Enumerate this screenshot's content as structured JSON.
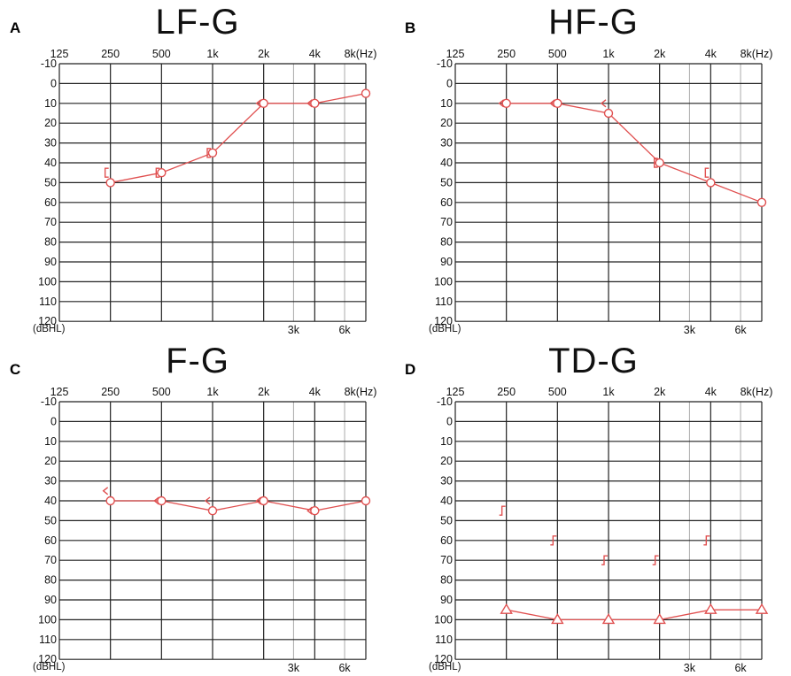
{
  "panels": [
    {
      "letter": "A",
      "title": "LF-G"
    },
    {
      "letter": "B",
      "title": "HF-G"
    },
    {
      "letter": "C",
      "title": "F-G"
    },
    {
      "letter": "D",
      "title": "TD-G"
    }
  ],
  "colors": {
    "marker": "#e05050",
    "grid": "#222222",
    "subgrid": "#aaaaaa"
  },
  "chart_data": [
    {
      "type": "line",
      "title": "LF-G",
      "x_tick_labels": [
        "125",
        "250",
        "500",
        "1k",
        "2k",
        "4k",
        "8k(Hz)"
      ],
      "x_mid_labels": [
        "3k",
        "6k"
      ],
      "y_tick_labels": [
        "-10",
        "0",
        "10",
        "20",
        "30",
        "40",
        "50",
        "60",
        "70",
        "80",
        "90",
        "100",
        "110",
        "120"
      ],
      "y_unit_label": "(dBHL)",
      "ylim": [
        -10,
        120
      ],
      "y_inverted": true,
      "air_conduction": {
        "symbol": "circle",
        "x": [
          250,
          500,
          1000,
          2000,
          4000,
          8000
        ],
        "y": [
          50,
          45,
          35,
          10,
          10,
          5
        ]
      },
      "bone_conduction": [
        {
          "symbol": "bracket",
          "x": 250,
          "y": 45
        },
        {
          "symbol": "bracket",
          "x": 500,
          "y": 45
        },
        {
          "symbol": "bracket",
          "x": 1000,
          "y": 35
        },
        {
          "symbol": "chevron",
          "x": 2000,
          "y": 10
        },
        {
          "symbol": "chevron",
          "x": 4000,
          "y": 10
        }
      ]
    },
    {
      "type": "line",
      "title": "HF-G",
      "x_tick_labels": [
        "125",
        "250",
        "500",
        "1k",
        "2k",
        "4k",
        "8k(Hz)"
      ],
      "x_mid_labels": [
        "3k",
        "6k"
      ],
      "y_tick_labels": [
        "-10",
        "0",
        "10",
        "20",
        "30",
        "40",
        "50",
        "60",
        "70",
        "80",
        "90",
        "100",
        "110",
        "120"
      ],
      "y_unit_label": "(dBHL)",
      "ylim": [
        -10,
        120
      ],
      "y_inverted": true,
      "air_conduction": {
        "symbol": "circle",
        "x": [
          250,
          500,
          1000,
          2000,
          4000,
          8000
        ],
        "y": [
          10,
          10,
          15,
          40,
          50,
          60
        ]
      },
      "bone_conduction": [
        {
          "symbol": "chevron",
          "x": 250,
          "y": 10
        },
        {
          "symbol": "chevron",
          "x": 500,
          "y": 10
        },
        {
          "symbol": "chevron",
          "x": 1000,
          "y": 10
        },
        {
          "symbol": "bracket",
          "x": 2000,
          "y": 40
        },
        {
          "symbol": "bracket",
          "x": 4000,
          "y": 45
        }
      ]
    },
    {
      "type": "line",
      "title": "F-G",
      "x_tick_labels": [
        "125",
        "250",
        "500",
        "1k",
        "2k",
        "4k",
        "8k(Hz)"
      ],
      "x_mid_labels": [
        "3k",
        "6k"
      ],
      "y_tick_labels": [
        "-10",
        "0",
        "10",
        "20",
        "30",
        "40",
        "50",
        "60",
        "70",
        "80",
        "90",
        "100",
        "110",
        "120"
      ],
      "y_unit_label": "(dBHL)",
      "ylim": [
        -10,
        120
      ],
      "y_inverted": true,
      "air_conduction": {
        "symbol": "circle",
        "x": [
          250,
          500,
          1000,
          2000,
          4000,
          8000
        ],
        "y": [
          40,
          40,
          45,
          40,
          45,
          40
        ]
      },
      "bone_conduction": [
        {
          "symbol": "chevron",
          "x": 250,
          "y": 35
        },
        {
          "symbol": "chevron",
          "x": 500,
          "y": 40
        },
        {
          "symbol": "chevron",
          "x": 1000,
          "y": 40
        },
        {
          "symbol": "chevron",
          "x": 2000,
          "y": 40
        },
        {
          "symbol": "chevron",
          "x": 4000,
          "y": 45
        }
      ]
    },
    {
      "type": "line",
      "title": "TD-G",
      "x_tick_labels": [
        "125",
        "250",
        "500",
        "1k",
        "2k",
        "4k",
        "8k(Hz)"
      ],
      "x_mid_labels": [
        "3k",
        "6k"
      ],
      "y_tick_labels": [
        "-10",
        "0",
        "10",
        "20",
        "30",
        "40",
        "50",
        "60",
        "70",
        "80",
        "90",
        "100",
        "110",
        "120"
      ],
      "y_unit_label": "(dBHL)",
      "ylim": [
        -10,
        120
      ],
      "y_inverted": true,
      "air_conduction": {
        "symbol": "triangle",
        "x": [
          250,
          500,
          1000,
          2000,
          4000,
          8000
        ],
        "y": [
          95,
          100,
          100,
          100,
          95,
          95
        ]
      },
      "bone_conduction": [
        {
          "symbol": "masked-bracket",
          "x": 250,
          "y": 45
        },
        {
          "symbol": "masked-bracket",
          "x": 500,
          "y": 60
        },
        {
          "symbol": "masked-bracket",
          "x": 1000,
          "y": 70
        },
        {
          "symbol": "masked-bracket",
          "x": 2000,
          "y": 70
        },
        {
          "symbol": "masked-bracket",
          "x": 4000,
          "y": 60
        }
      ]
    }
  ]
}
